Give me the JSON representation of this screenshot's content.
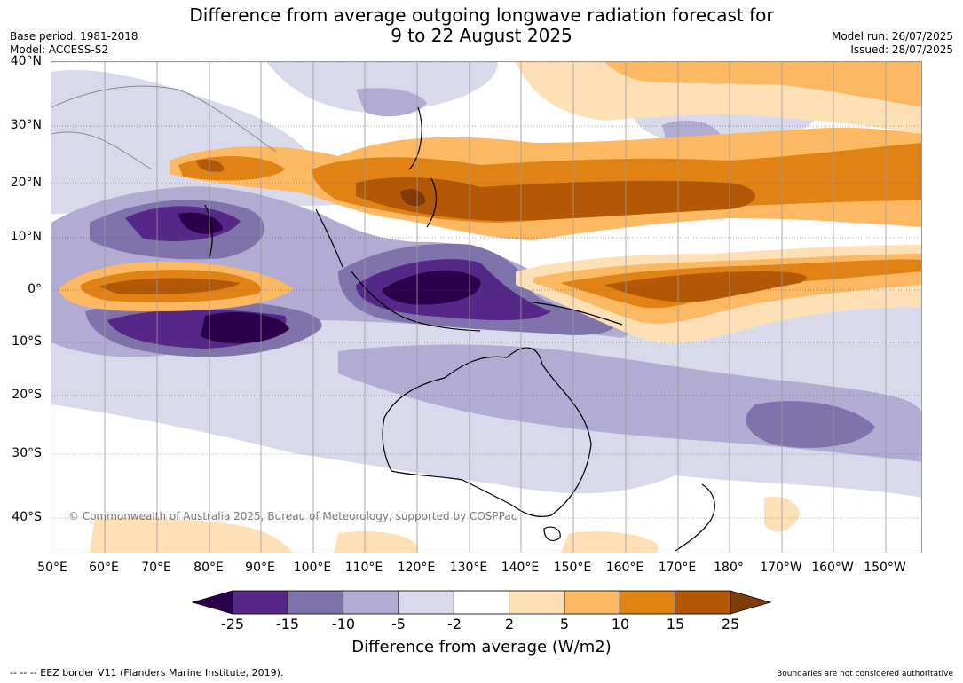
{
  "title_line1": "Difference from average outgoing longwave radiation forecast for",
  "title_line2": "9 to 22 August 2025",
  "base_period": "Base period: 1981-2018",
  "model": "Model: ACCESS-S2",
  "model_run": "Model run: 26/07/2025",
  "issued": "Issued: 28/07/2025",
  "lat_labels": [
    "40°N",
    "30°N",
    "20°N",
    "10°N",
    "0°",
    "10°S",
    "20°S",
    "30°S",
    "40°S"
  ],
  "lon_labels": [
    "50°E",
    "60°E",
    "70°E",
    "80°E",
    "90°E",
    "100°E",
    "110°E",
    "120°E",
    "130°E",
    "140°E",
    "150°E",
    "160°E",
    "170°E",
    "180°",
    "170°W",
    "160°W",
    "150°W"
  ],
  "copyright": "© Commonwealth of Australia 2025, Bureau of Meteorology, supported by COSPPac",
  "colorbar": {
    "ticks": [
      "-25",
      "-15",
      "-10",
      "-5",
      "-2",
      "2",
      "5",
      "10",
      "15",
      "25"
    ],
    "colors": [
      "#2d004b",
      "#542788",
      "#8073ac",
      "#b2abd2",
      "#d8daeb",
      "#ffffff",
      "#fee0b6",
      "#fdb863",
      "#e08214",
      "#b35806",
      "#7f3b08"
    ],
    "title": "Difference from average (W/m2)"
  },
  "footer_left": "--  --  -- EEZ border V11 (Flanders Marine Institute, 2019).",
  "footer_right": "Boundaries are not considered authoritative"
}
